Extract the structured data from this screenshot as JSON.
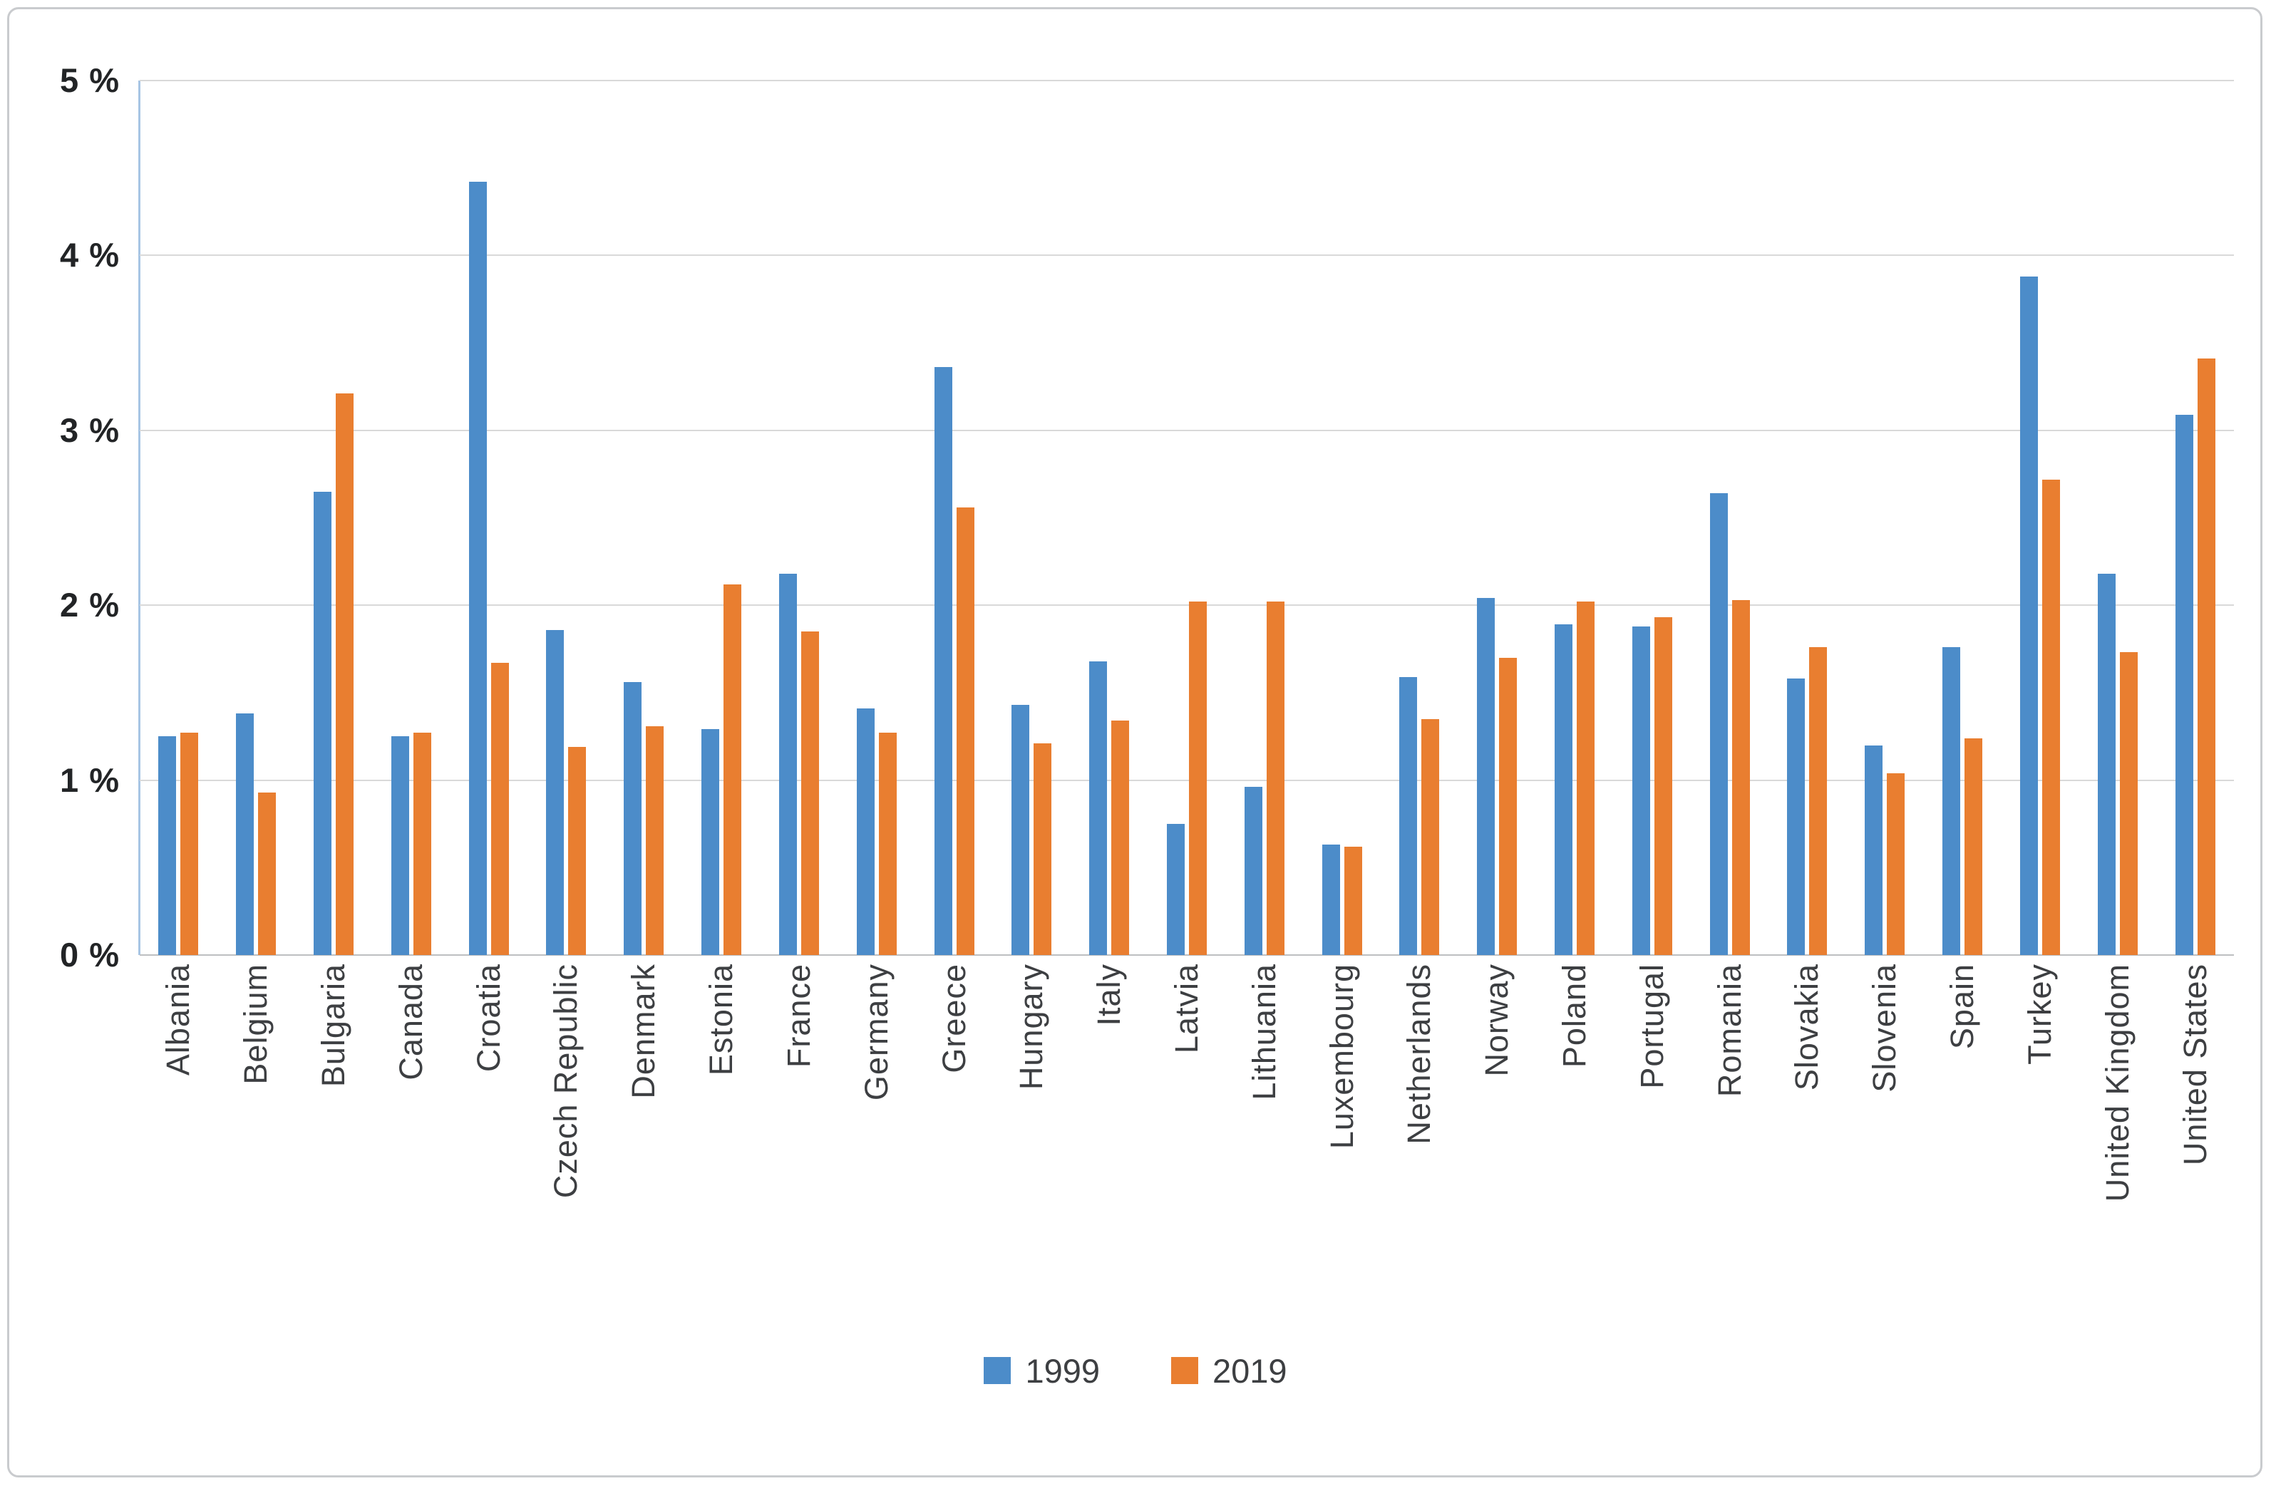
{
  "chart_data": {
    "type": "bar",
    "title": "",
    "xlabel": "",
    "ylabel": "",
    "ylim": [
      0,
      5
    ],
    "y_ticks": [
      "0 %",
      "1 %",
      "2 %",
      "3 %",
      "4 %",
      "5 %"
    ],
    "grid": true,
    "legend_position": "bottom",
    "categories": [
      "Albania",
      "Belgium",
      "Bulgaria",
      "Canada",
      "Croatia",
      "Czech Republic",
      "Denmark",
      "Estonia",
      "France",
      "Germany",
      "Greece",
      "Hungary",
      "Italy",
      "Latvia",
      "Lithuania",
      "Luxembourg",
      "Netherlands",
      "Norway",
      "Poland",
      "Portugal",
      "Romania",
      "Slovakia",
      "Slovenia",
      "Spain",
      "Turkey",
      "United Kingdom",
      "United States"
    ],
    "series": [
      {
        "name": "1999",
        "color": "#4C8CC9",
        "values": [
          1.25,
          1.38,
          2.65,
          1.25,
          4.42,
          1.86,
          1.56,
          1.29,
          2.18,
          1.41,
          3.36,
          1.43,
          1.68,
          0.75,
          0.96,
          0.63,
          1.59,
          2.04,
          1.89,
          1.88,
          2.64,
          1.58,
          1.2,
          1.76,
          3.88,
          2.18,
          3.09
        ]
      },
      {
        "name": "2019",
        "color": "#E97E30",
        "values": [
          1.27,
          0.93,
          3.21,
          1.27,
          1.67,
          1.19,
          1.31,
          2.12,
          1.85,
          1.27,
          2.56,
          1.21,
          1.34,
          2.02,
          2.02,
          0.62,
          1.35,
          1.7,
          2.02,
          1.93,
          2.03,
          1.76,
          1.04,
          1.24,
          2.72,
          1.73,
          3.41
        ]
      }
    ],
    "colors": {
      "gridline": "#d9d9d9",
      "zero_line": "#bdbfc1",
      "y_axis_line": "#a7c5e4",
      "tick_text": "#222426",
      "label_text": "#3d3f42",
      "figure_border": "#c9cbce",
      "background": "#ffffff"
    }
  }
}
